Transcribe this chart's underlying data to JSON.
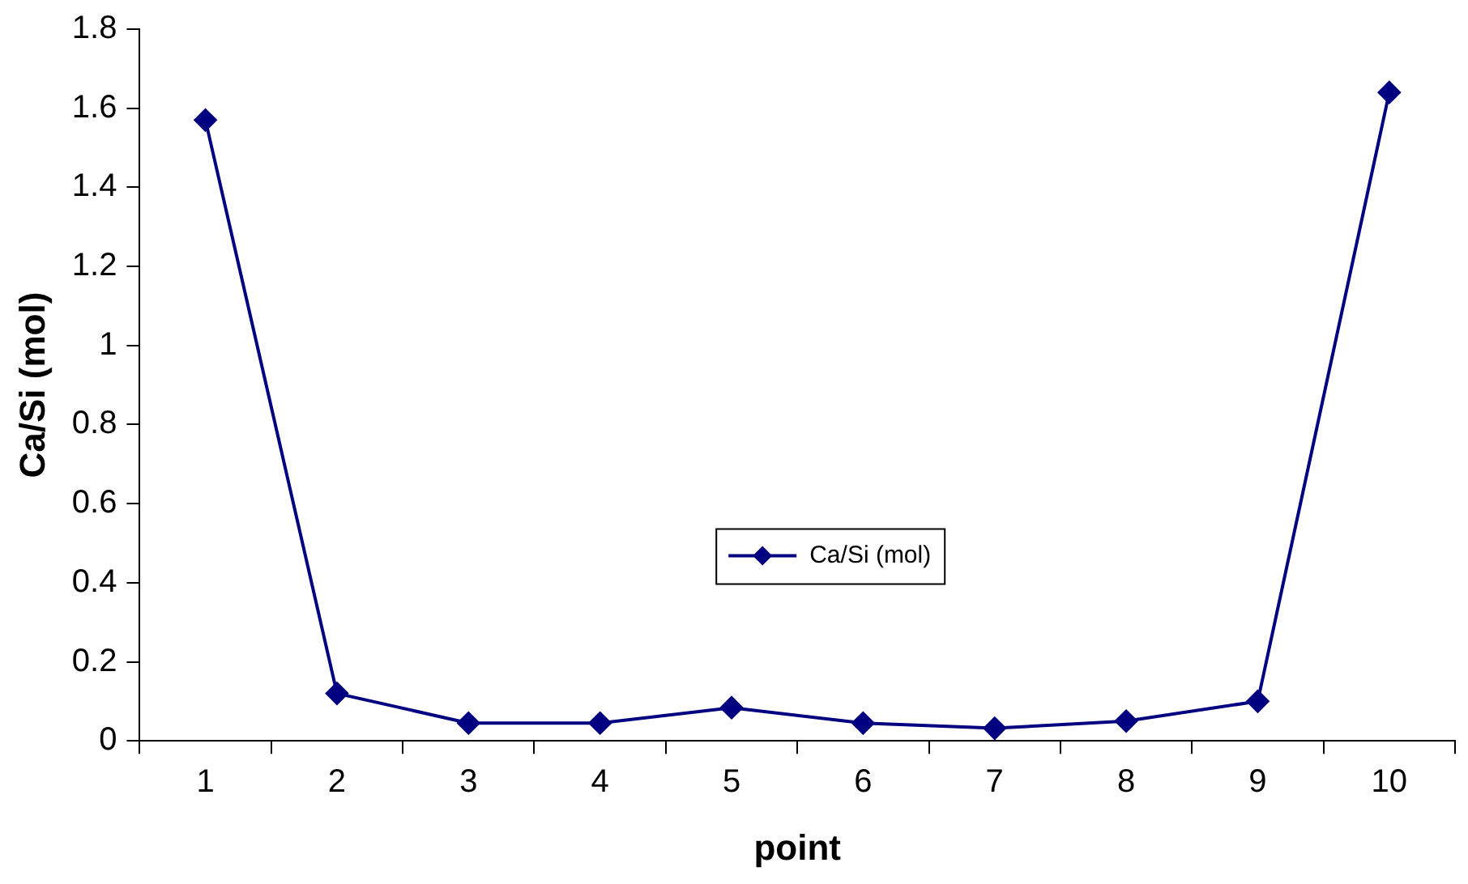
{
  "chart_data": {
    "type": "line",
    "xlabel": "point",
    "ylabel": "Ca/Si (mol)",
    "categories": [
      "1",
      "2",
      "3",
      "4",
      "5",
      "6",
      "7",
      "8",
      "9",
      "10"
    ],
    "series": [
      {
        "name": "Ca/Si (mol)",
        "color": "#000080",
        "values": [
          1.57,
          0.12,
          0.045,
          0.045,
          0.084,
          0.045,
          0.032,
          0.05,
          0.1,
          1.64
        ]
      }
    ],
    "ylim": [
      0,
      1.8
    ],
    "yticks": [
      0,
      0.2,
      0.4,
      0.6,
      0.8,
      1,
      1.2,
      1.4,
      1.6,
      1.8
    ],
    "grid": false,
    "legend": "center",
    "marker": "diamond",
    "line_style": "solid"
  }
}
